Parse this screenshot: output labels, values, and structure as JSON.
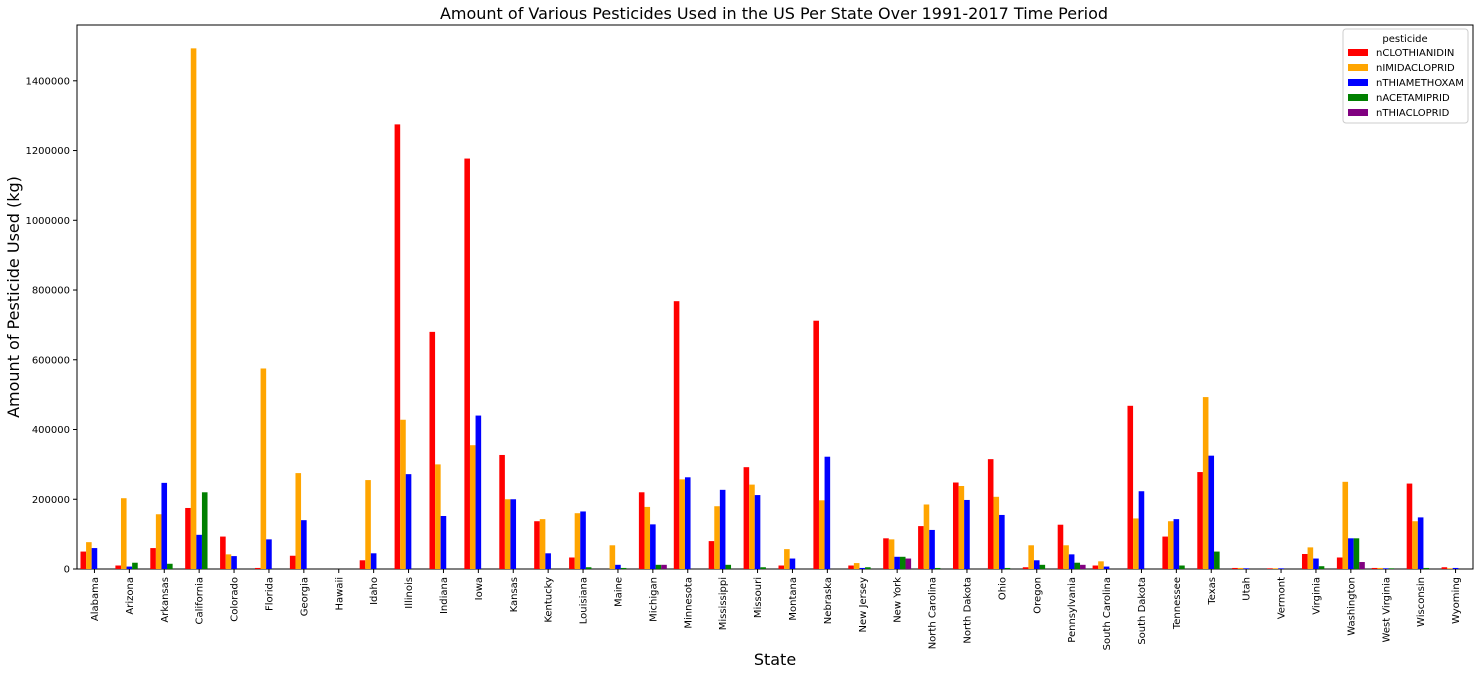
{
  "chart_data": {
    "type": "bar",
    "title": "Amount of Various Pesticides Used in the US Per State Over 1991-2017 Time Period",
    "xlabel": "State",
    "ylabel": "Amount of Pesticide Used (kg)",
    "ylim": [
      0,
      1560000
    ],
    "yticks": [
      0,
      200000,
      400000,
      600000,
      800000,
      1000000,
      1200000,
      1400000
    ],
    "grid": false,
    "legend": {
      "title": "pesticide",
      "placement": "top-right"
    },
    "categories": [
      "Alabama",
      "Arizona",
      "Arkansas",
      "California",
      "Colorado",
      "Florida",
      "Georgia",
      "Hawaii",
      "Idaho",
      "Illinois",
      "Indiana",
      "Iowa",
      "Kansas",
      "Kentucky",
      "Louisiana",
      "Maine",
      "Michigan",
      "Minnesota",
      "Mississippi",
      "Missouri",
      "Montana",
      "Nebraska",
      "New Jersey",
      "New York",
      "North Carolina",
      "North Dakota",
      "Ohio",
      "Oregon",
      "Pennsylvania",
      "South Carolina",
      "South Dakota",
      "Tennessee",
      "Texas",
      "Utah",
      "Vermont",
      "Virginia",
      "Washington",
      "West Virginia",
      "Wisconsin",
      "Wyoming"
    ],
    "series": [
      {
        "name": "nCLOTHIANIDIN",
        "color": "#ff0000",
        "values": [
          50000,
          10000,
          60000,
          175000,
          93000,
          3000,
          38000,
          0,
          25000,
          1275000,
          680000,
          1177000,
          327000,
          137000,
          33000,
          0,
          220000,
          768000,
          80000,
          292000,
          10000,
          712000,
          10000,
          88000,
          123000,
          248000,
          315000,
          5000,
          127000,
          10000,
          468000,
          93000,
          278000,
          3000,
          2000,
          43000,
          33000,
          3000,
          245000,
          5000
        ]
      },
      {
        "name": "nIMIDACLOPRID",
        "color": "#ffa500",
        "values": [
          77000,
          203000,
          157000,
          1493000,
          42000,
          575000,
          275000,
          0,
          255000,
          428000,
          300000,
          355000,
          200000,
          143000,
          160000,
          68000,
          178000,
          257000,
          180000,
          242000,
          57000,
          197000,
          17000,
          85000,
          185000,
          238000,
          207000,
          68000,
          68000,
          22000,
          145000,
          137000,
          493000,
          3000,
          2000,
          62000,
          250000,
          3000,
          137000,
          2000
        ]
      },
      {
        "name": "nTHIAMETHOXAM",
        "color": "#0000ff",
        "values": [
          60000,
          7000,
          247000,
          98000,
          37000,
          85000,
          140000,
          0,
          45000,
          272000,
          152000,
          440000,
          200000,
          45000,
          165000,
          12000,
          128000,
          263000,
          227000,
          212000,
          30000,
          322000,
          3000,
          35000,
          112000,
          198000,
          155000,
          25000,
          42000,
          7000,
          223000,
          143000,
          325000,
          2000,
          2000,
          30000,
          88000,
          2000,
          148000,
          3000
        ]
      },
      {
        "name": "nACETAMIPRID",
        "color": "#008000",
        "values": [
          0,
          18000,
          15000,
          220000,
          0,
          0,
          0,
          0,
          0,
          0,
          0,
          0,
          0,
          0,
          5000,
          3000,
          12000,
          0,
          12000,
          5000,
          0,
          0,
          5000,
          35000,
          3000,
          0,
          3000,
          12000,
          18000,
          0,
          0,
          10000,
          50000,
          0,
          0,
          8000,
          88000,
          2000,
          3000,
          0
        ]
      },
      {
        "name": "nTHIACLOPRID",
        "color": "#800080",
        "values": [
          0,
          0,
          0,
          0,
          0,
          0,
          0,
          0,
          0,
          0,
          0,
          0,
          0,
          0,
          0,
          0,
          12000,
          0,
          0,
          0,
          0,
          0,
          0,
          30000,
          0,
          0,
          0,
          0,
          12000,
          0,
          0,
          0,
          0,
          0,
          0,
          0,
          20000,
          0,
          0,
          0
        ]
      }
    ]
  }
}
